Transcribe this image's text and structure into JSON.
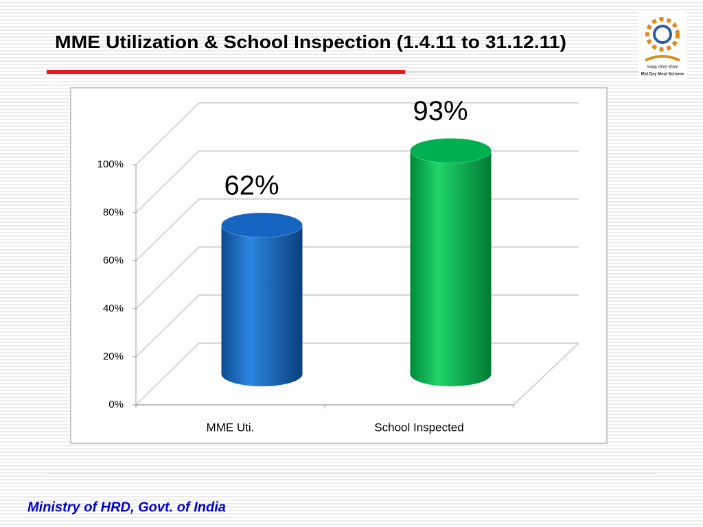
{
  "chart_data": {
    "type": "cylinder",
    "title": "MME Utilization  & School Inspection (1.4.11 to 31.12.11)",
    "categories": [
      "MME Uti.",
      "School Inspected"
    ],
    "values": [
      62,
      93
    ],
    "value_labels": [
      "62%",
      "93%"
    ],
    "colors": [
      "#1565c0",
      "#00b050"
    ],
    "ylim": [
      0,
      100
    ],
    "yticks": [
      {
        "value": 0,
        "label": "0%"
      },
      {
        "value": 20,
        "label": "20%"
      },
      {
        "value": 40,
        "label": "40%"
      },
      {
        "value": 60,
        "label": "60%"
      },
      {
        "value": 80,
        "label": "80%"
      },
      {
        "value": 100,
        "label": "100%"
      }
    ],
    "grid": true
  },
  "logo": {
    "hindi": "मध्याह्न भोजन योजना",
    "caption": "Mid Day Meal Scheme"
  },
  "footer": "Ministry of HRD, Govt. of India"
}
